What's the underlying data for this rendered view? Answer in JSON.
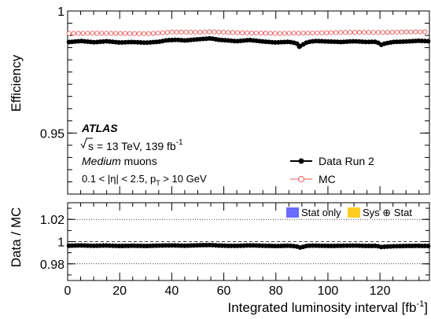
{
  "chart_data": [
    {
      "type": "scatter",
      "panel": "main",
      "ylabel": "Efficiency",
      "xlim": [
        0,
        139
      ],
      "ylim": [
        0.925,
        1.0
      ],
      "yticks": [
        0.95,
        1
      ],
      "ytick_labels": [
        "0.95",
        "1"
      ],
      "series": [
        {
          "name": "Data Run 2",
          "color": "#000000",
          "marker": "filled-circle",
          "x": [
            1,
            5,
            10,
            15,
            20,
            25,
            30,
            35,
            38,
            42,
            45,
            50,
            55,
            58,
            62,
            65,
            70,
            75,
            80,
            85,
            88,
            89,
            92,
            95,
            100,
            105,
            110,
            115,
            119,
            120,
            122,
            125,
            130,
            135,
            139
          ],
          "y": [
            0.9873,
            0.9877,
            0.9872,
            0.9876,
            0.9871,
            0.9873,
            0.987,
            0.9874,
            0.988,
            0.9882,
            0.9879,
            0.9884,
            0.9888,
            0.9882,
            0.9879,
            0.9876,
            0.9881,
            0.9875,
            0.9871,
            0.9874,
            0.9868,
            0.9854,
            0.9872,
            0.9877,
            0.9875,
            0.9873,
            0.9876,
            0.9873,
            0.9874,
            0.986,
            0.9867,
            0.9873,
            0.9875,
            0.9878,
            0.9876
          ]
        },
        {
          "name": "MC",
          "color": "#e85a5a",
          "marker": "open-circle",
          "x": [
            1,
            10,
            20,
            30,
            35,
            40,
            50,
            55,
            60,
            70,
            80,
            90,
            100,
            110,
            120,
            130,
            139
          ],
          "y": [
            0.9908,
            0.9909,
            0.9908,
            0.9907,
            0.9909,
            0.9914,
            0.9913,
            0.9915,
            0.9913,
            0.991,
            0.9908,
            0.9909,
            0.9911,
            0.9913,
            0.9912,
            0.9914,
            0.9915
          ]
        }
      ],
      "legend_position": "bottom-right",
      "annotations": {
        "experiment": "ATLAS",
        "energy_prefix": "s = 13 TeV, 139 fb",
        "energy_sup": "-1",
        "selection_italic": "Medium",
        "selection_rest": " muons",
        "cuts_main": "0.1 < |η| < 2.5, p",
        "cuts_sub": "T",
        "cuts_rest": " > 10 GeV"
      }
    },
    {
      "type": "scatter",
      "panel": "ratio",
      "ylabel": "Data / MC",
      "xlabel": "Integrated luminosity interval [fb",
      "xlabel_sup": "-1",
      "xlabel_end": "]",
      "xlim": [
        0,
        139
      ],
      "ylim": [
        0.965,
        1.035
      ],
      "xticks": [
        0,
        20,
        40,
        60,
        80,
        100,
        120
      ],
      "xtick_labels": [
        "0",
        "20",
        "40",
        "60",
        "80",
        "100",
        "120"
      ],
      "yticks": [
        0.98,
        1,
        1.02
      ],
      "ytick_labels": [
        "0.98",
        "1",
        "1.02"
      ],
      "reference_line": 1,
      "grid_y": [
        0.98,
        1.02
      ],
      "series": [
        {
          "name": "Data / MC",
          "color": "#000000",
          "x": [
            1,
            5,
            10,
            15,
            20,
            25,
            30,
            35,
            38,
            42,
            45,
            50,
            55,
            58,
            62,
            65,
            70,
            75,
            80,
            85,
            88,
            89,
            92,
            95,
            100,
            105,
            110,
            115,
            119,
            120,
            122,
            125,
            130,
            135,
            139
          ],
          "y": [
            0.9963,
            0.9966,
            0.9962,
            0.9965,
            0.9961,
            0.9963,
            0.9961,
            0.9964,
            0.9966,
            0.9965,
            0.9963,
            0.9967,
            0.9969,
            0.9965,
            0.9962,
            0.9962,
            0.9966,
            0.9963,
            0.996,
            0.9963,
            0.9957,
            0.9945,
            0.9962,
            0.9964,
            0.9961,
            0.9962,
            0.9964,
            0.9961,
            0.9962,
            0.995,
            0.9955,
            0.9958,
            0.9961,
            0.9962,
            0.996
          ]
        }
      ],
      "legend": [
        {
          "label": "Stat only",
          "color": "#6b6bff"
        },
        {
          "label": "Sys ⊕ Stat",
          "color": "#ffcc22"
        }
      ],
      "legend_position": "top-right"
    }
  ]
}
